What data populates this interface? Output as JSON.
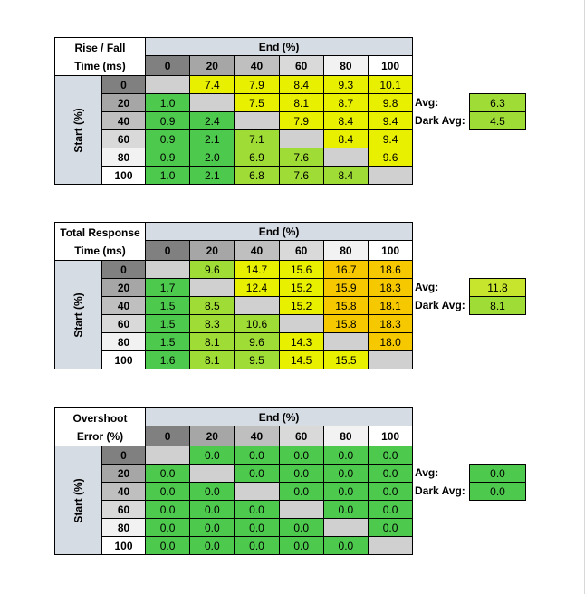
{
  "tables": [
    {
      "title": [
        "Rise / Fall",
        "Time (ms)"
      ],
      "end_label": "End (%)",
      "start_label": "Start (%)",
      "columns": [
        "0",
        "20",
        "40",
        "60",
        "80",
        "100"
      ],
      "rows": [
        {
          "label": "0",
          "cells": [
            null,
            "7.4",
            "7.9",
            "8.4",
            "9.3",
            "10.1"
          ],
          "colors": [
            "#d0d0d0",
            "#e8f000",
            "#e8f000",
            "#e8f000",
            "#e8f000",
            "#e8f000"
          ]
        },
        {
          "label": "20",
          "cells": [
            "1.0",
            null,
            "7.5",
            "8.1",
            "8.7",
            "9.8"
          ],
          "colors": [
            "#4dc94d",
            "#d0d0d0",
            "#e8f000",
            "#e8f000",
            "#e8f000",
            "#e8f000"
          ]
        },
        {
          "label": "40",
          "cells": [
            "0.9",
            "2.4",
            null,
            "7.9",
            "8.4",
            "9.4"
          ],
          "colors": [
            "#4dc94d",
            "#4dc94d",
            "#d0d0d0",
            "#e8f000",
            "#e8f000",
            "#e8f000"
          ]
        },
        {
          "label": "60",
          "cells": [
            "0.9",
            "2.1",
            "7.1",
            null,
            "8.4",
            "9.4"
          ],
          "colors": [
            "#4dc94d",
            "#4dc94d",
            "#9fdc35",
            "#d0d0d0",
            "#e8f000",
            "#e8f000"
          ]
        },
        {
          "label": "80",
          "cells": [
            "0.9",
            "2.0",
            "6.9",
            "7.6",
            null,
            "9.6"
          ],
          "colors": [
            "#4dc94d",
            "#4dc94d",
            "#9fdc35",
            "#9fdc35",
            "#d0d0d0",
            "#e8f000"
          ]
        },
        {
          "label": "100",
          "cells": [
            "1.0",
            "2.1",
            "6.8",
            "7.6",
            "8.4",
            null
          ],
          "colors": [
            "#4dc94d",
            "#4dc94d",
            "#9fdc35",
            "#9fdc35",
            "#9fdc35",
            "#d0d0d0"
          ]
        }
      ],
      "avg": {
        "label": "Avg:",
        "value": "6.3",
        "color": "#9fdc35"
      },
      "dark_avg": {
        "label": "Dark Avg:",
        "value": "4.5",
        "color": "#9fdc35"
      }
    },
    {
      "title": [
        "Total Response",
        "Time (ms)"
      ],
      "end_label": "End (%)",
      "start_label": "Start (%)",
      "columns": [
        "0",
        "20",
        "40",
        "60",
        "80",
        "100"
      ],
      "rows": [
        {
          "label": "0",
          "cells": [
            null,
            "9.6",
            "14.7",
            "15.6",
            "16.7",
            "18.6"
          ],
          "colors": [
            "#d0d0d0",
            "#9fdc35",
            "#e8f000",
            "#e8f000",
            "#f5c800",
            "#f5c800"
          ]
        },
        {
          "label": "20",
          "cells": [
            "1.7",
            null,
            "12.4",
            "15.2",
            "15.9",
            "18.3"
          ],
          "colors": [
            "#4dc94d",
            "#d0d0d0",
            "#e8f000",
            "#e8f000",
            "#f5c800",
            "#f5c800"
          ]
        },
        {
          "label": "40",
          "cells": [
            "1.5",
            "8.5",
            null,
            "15.2",
            "15.8",
            "18.1"
          ],
          "colors": [
            "#4dc94d",
            "#9fdc35",
            "#d0d0d0",
            "#e8f000",
            "#f5c800",
            "#f5c800"
          ]
        },
        {
          "label": "60",
          "cells": [
            "1.5",
            "8.3",
            "10.6",
            null,
            "15.8",
            "18.3"
          ],
          "colors": [
            "#4dc94d",
            "#9fdc35",
            "#9fdc35",
            "#d0d0d0",
            "#f5c800",
            "#f5c800"
          ]
        },
        {
          "label": "80",
          "cells": [
            "1.5",
            "8.1",
            "9.6",
            "14.3",
            null,
            "18.0"
          ],
          "colors": [
            "#4dc94d",
            "#9fdc35",
            "#9fdc35",
            "#e8f000",
            "#d0d0d0",
            "#f5c800"
          ]
        },
        {
          "label": "100",
          "cells": [
            "1.6",
            "8.1",
            "9.5",
            "14.5",
            "15.5",
            null
          ],
          "colors": [
            "#4dc94d",
            "#9fdc35",
            "#9fdc35",
            "#e8f000",
            "#e8f000",
            "#d0d0d0"
          ]
        }
      ],
      "avg": {
        "label": "Avg:",
        "value": "11.8",
        "color": "#c6e52c"
      },
      "dark_avg": {
        "label": "Dark Avg:",
        "value": "8.1",
        "color": "#9fdc35"
      }
    },
    {
      "title": [
        "Overshoot",
        "Error (%)"
      ],
      "end_label": "End (%)",
      "start_label": "Start (%)",
      "columns": [
        "0",
        "20",
        "40",
        "60",
        "80",
        "100"
      ],
      "rows": [
        {
          "label": "0",
          "cells": [
            null,
            "0.0",
            "0.0",
            "0.0",
            "0.0",
            "0.0"
          ],
          "colors": [
            "#d0d0d0",
            "#4dc94d",
            "#4dc94d",
            "#4dc94d",
            "#4dc94d",
            "#4dc94d"
          ]
        },
        {
          "label": "20",
          "cells": [
            "0.0",
            null,
            "0.0",
            "0.0",
            "0.0",
            "0.0"
          ],
          "colors": [
            "#4dc94d",
            "#d0d0d0",
            "#4dc94d",
            "#4dc94d",
            "#4dc94d",
            "#4dc94d"
          ]
        },
        {
          "label": "40",
          "cells": [
            "0.0",
            "0.0",
            null,
            "0.0",
            "0.0",
            "0.0"
          ],
          "colors": [
            "#4dc94d",
            "#4dc94d",
            "#d0d0d0",
            "#4dc94d",
            "#4dc94d",
            "#4dc94d"
          ]
        },
        {
          "label": "60",
          "cells": [
            "0.0",
            "0.0",
            "0.0",
            null,
            "0.0",
            "0.0"
          ],
          "colors": [
            "#4dc94d",
            "#4dc94d",
            "#4dc94d",
            "#d0d0d0",
            "#4dc94d",
            "#4dc94d"
          ]
        },
        {
          "label": "80",
          "cells": [
            "0.0",
            "0.0",
            "0.0",
            "0.0",
            null,
            "0.0"
          ],
          "colors": [
            "#4dc94d",
            "#4dc94d",
            "#4dc94d",
            "#4dc94d",
            "#d0d0d0",
            "#4dc94d"
          ]
        },
        {
          "label": "100",
          "cells": [
            "0.0",
            "0.0",
            "0.0",
            "0.0",
            "0.0",
            null
          ],
          "colors": [
            "#4dc94d",
            "#4dc94d",
            "#4dc94d",
            "#4dc94d",
            "#4dc94d",
            "#d0d0d0"
          ]
        }
      ],
      "avg": {
        "label": "Avg:",
        "value": "0.0",
        "color": "#4dc94d"
      },
      "dark_avg": {
        "label": "Dark Avg:",
        "value": "0.0",
        "color": "#4dc94d"
      }
    }
  ]
}
